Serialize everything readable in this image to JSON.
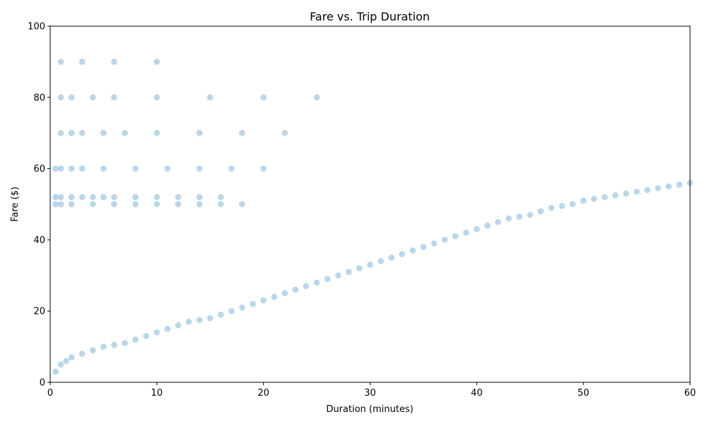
{
  "chart_data": {
    "type": "scatter",
    "title": "Fare vs. Trip Duration",
    "xlabel": "Duration (minutes)",
    "ylabel": "Fare ($)",
    "xlim": [
      0,
      60
    ],
    "ylim": [
      0,
      100
    ],
    "xticks": [
      0,
      10,
      20,
      30,
      40,
      50,
      60
    ],
    "yticks": [
      0,
      20,
      40,
      60,
      80,
      100
    ],
    "grid": false,
    "legend": "none",
    "point_color": "#1f77b4",
    "point_alpha": 0.3,
    "pattern_description": "Dense scatter of trips; fares rise roughly linearly with duration from near 0–20 at short trips to about 30–80 at 60 minutes, with horizontal banding at flat fares near 50–52, 60, 70, 80 and 90 for short trips.",
    "series": [
      {
        "name": "",
        "x": [
          0.5,
          1,
          1.5,
          2,
          3,
          4,
          5,
          6,
          7,
          8,
          9,
          10,
          11,
          12,
          13,
          14,
          15,
          16,
          17,
          18,
          19,
          20,
          21,
          22,
          23,
          24,
          25,
          26,
          27,
          28,
          29,
          30,
          31,
          32,
          33,
          34,
          35,
          36,
          37,
          38,
          39,
          40,
          41,
          42,
          43,
          44,
          45,
          46,
          47,
          48,
          49,
          50,
          51,
          52,
          53,
          54,
          55,
          56,
          57,
          58,
          59,
          60
        ],
        "y": [
          3,
          5,
          6,
          7,
          8,
          9,
          10,
          10.5,
          11,
          12,
          13,
          14,
          15,
          16,
          17,
          17.5,
          18,
          19,
          20,
          21,
          22,
          23,
          24,
          25,
          26,
          27,
          28,
          29,
          30,
          31,
          32,
          33,
          34,
          35,
          36,
          37,
          38,
          39,
          40,
          41,
          42,
          43,
          44,
          45,
          46,
          46.5,
          47,
          48,
          49,
          49.5,
          50,
          51,
          51.5,
          52,
          52.5,
          53,
          53.5,
          54,
          54.5,
          55,
          55.5,
          56
        ]
      },
      {
        "name": "",
        "x": [
          0.5,
          1,
          2,
          3,
          4,
          5,
          6,
          8,
          10,
          12,
          14,
          16,
          0.5,
          1,
          2,
          4,
          6,
          8,
          10,
          12,
          14,
          16,
          18,
          0.5,
          1,
          2,
          3,
          5,
          8,
          11,
          14,
          17,
          20,
          1,
          2,
          3,
          5,
          7,
          10,
          14,
          18,
          22,
          1,
          2,
          4,
          6,
          10,
          15,
          20,
          25,
          1,
          3,
          6,
          10
        ],
        "y": [
          52,
          52,
          52,
          52,
          52,
          52,
          52,
          52,
          52,
          52,
          52,
          52,
          50,
          50,
          50,
          50,
          50,
          50,
          50,
          50,
          50,
          50,
          50,
          60,
          60,
          60,
          60,
          60,
          60,
          60,
          60,
          60,
          60,
          70,
          70,
          70,
          70,
          70,
          70,
          70,
          70,
          70,
          80,
          80,
          80,
          80,
          80,
          80,
          80,
          80,
          90,
          90,
          90,
          90
        ]
      }
    ]
  }
}
